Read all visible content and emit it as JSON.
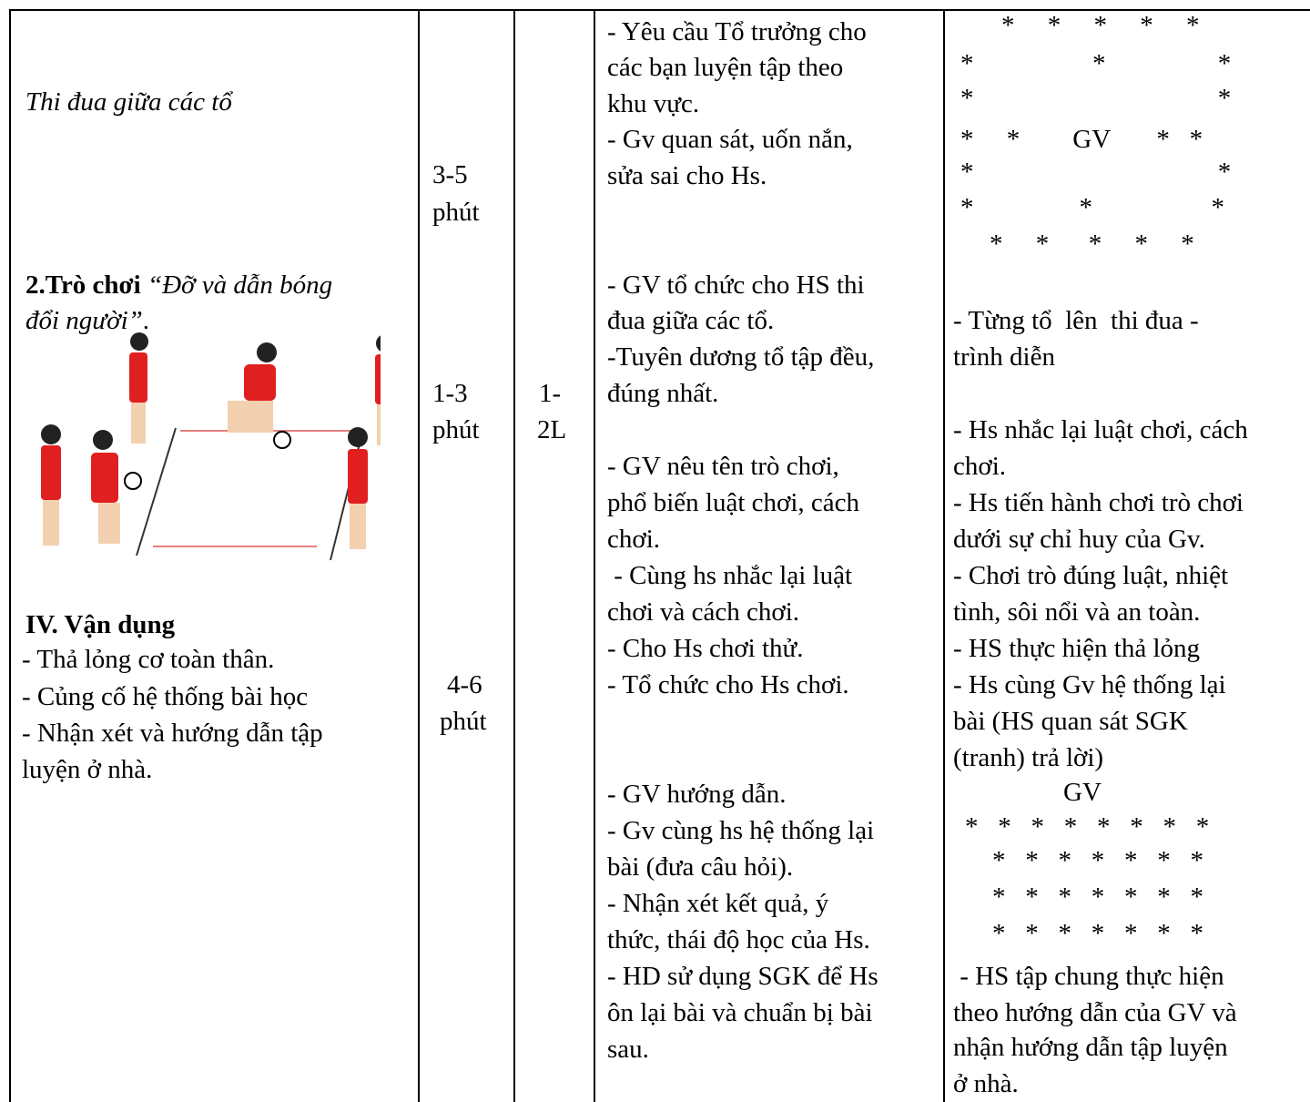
{
  "table": {
    "content": {
      "activity": "Thi đua giữa các tổ",
      "game_label": "2.Trò chơi",
      "game_name_1": "“Đỡ và dẫn bóng",
      "game_name_2": "đổi người”",
      "game_name_end": ".",
      "section_title": "IV. Vận dụng",
      "lines": [
        "- Thả lỏng cơ toàn thân.",
        "- Củng cố hệ thống bài học",
        "- Nhận xét và hướng dẫn tập",
        "luyện ở nhà."
      ]
    },
    "time": [
      "3-5",
      "phút",
      "1-3",
      "phút",
      "4-6",
      "phút"
    ],
    "reps": [
      "1-",
      "2L"
    ],
    "teacher": [
      "- Yêu cầu Tổ trưởng cho",
      "các bạn luyện tập theo",
      "khu vực.",
      "- Gv quan sát, uốn nắn,",
      "sửa sai cho Hs.",
      "- GV tổ chức cho HS thi",
      "đua giữa các tổ.",
      "-Tuyên dương tổ tập đều,",
      "đúng nhất.",
      "- GV nêu tên trò chơi,",
      "phổ biến luật chơi, cách",
      "chơi.",
      " - Cùng hs nhắc lại luật",
      "chơi và cách chơi.",
      "- Cho Hs chơi thử.",
      "- Tổ chức cho Hs chơi.",
      "- GV hướng dẫn.",
      "- Gv cùng hs hệ thống lại",
      "bài (đưa câu hỏi).",
      "- Nhận xét kết quả, ý",
      "thức, thái độ học của Hs.",
      "- HD sử dụng SGK để Hs",
      "ôn lại bài và chuẩn bị bài",
      "sau."
    ],
    "formation_1": [
      "*     *     *     *     *",
      "*                  *                 *",
      "*                                     *",
      "*     *        GV       *   *",
      "*                                     *",
      "*                *                  *",
      "*     *      *     *     *"
    ],
    "student": [
      "- Từng tổ  lên  thi đua -",
      "trình diễn",
      "- Hs nhắc lại luật chơi, cách",
      "chơi.",
      "- Hs tiến hành chơi trò chơi",
      "dưới sự chỉ huy của Gv.",
      "- Chơi trò đúng luật, nhiệt",
      "tình, sôi nổi và an toàn.",
      "- HS thực hiện thả lỏng",
      "- Hs cùng Gv hệ thống lại",
      "bài (HS quan sát SGK",
      "(tranh) trả lời)"
    ],
    "formation_2_label": "GV",
    "formation_2": [
      "*   *   *   *   *   *   *   *",
      "*   *   *   *   *   *   *",
      "*   *   *   *   *   *   *",
      "*   *   *   *   *   *   *"
    ],
    "closing": [
      " - HS tập chung thực hiện",
      "theo hướng dẫn của GV và",
      "nhận hướng dẫn tập luyện",
      "ở nhà."
    ]
  }
}
